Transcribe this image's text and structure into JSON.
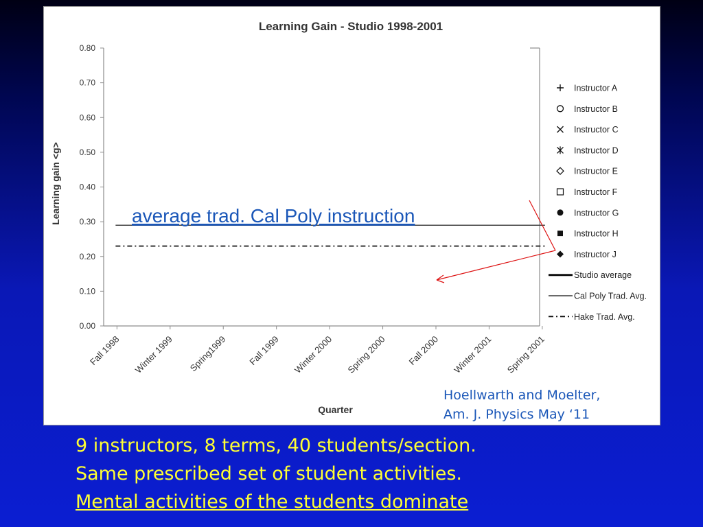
{
  "chart_data": {
    "type": "scatter",
    "title": "Learning Gain - Studio 1998-2001",
    "xlabel": "Quarter",
    "ylabel": "Learning gain <g>",
    "categories": [
      "Fall 1998",
      "Winter 1999",
      "Spring1999",
      "Fall 1999",
      "Winter 2000",
      "Spring 2000",
      "Fall 2000",
      "Winter 2001",
      "Spring 2001"
    ],
    "ylim": [
      0,
      0.8
    ],
    "yticks": [
      "0.00",
      "0.10",
      "0.20",
      "0.30",
      "0.40",
      "0.50",
      "0.60",
      "0.70",
      "0.80"
    ],
    "grid": false,
    "legend_position": "right",
    "series": [
      {
        "name": "Instructor A",
        "marker": "plus",
        "values": []
      },
      {
        "name": "Instructor B",
        "marker": "circle-open",
        "values": []
      },
      {
        "name": "Instructor C",
        "marker": "x",
        "values": []
      },
      {
        "name": "Instructor D",
        "marker": "asterisk",
        "values": []
      },
      {
        "name": "Instructor E",
        "marker": "diamond-open",
        "values": []
      },
      {
        "name": "Instructor F",
        "marker": "square-open",
        "values": []
      },
      {
        "name": "Instructor G",
        "marker": "circle-filled",
        "values": []
      },
      {
        "name": "Instructor H",
        "marker": "square-filled",
        "values": []
      },
      {
        "name": "Instructor J",
        "marker": "diamond-filled",
        "values": []
      },
      {
        "name": "Studio average",
        "line": "thick",
        "values": []
      },
      {
        "name": "Cal Poly Trad. Avg.",
        "line": "thin",
        "values": [
          0.29,
          0.29,
          0.29,
          0.29,
          0.29,
          0.29,
          0.29,
          0.29,
          0.29
        ]
      },
      {
        "name": "Hake Trad. Avg.",
        "line": "dash-dot",
        "values": [
          0.23,
          0.23,
          0.23,
          0.23,
          0.23,
          0.23,
          0.23,
          0.23,
          0.23
        ]
      }
    ],
    "annotation": "average trad. Cal Poly instruction"
  },
  "colors": {
    "annotation_text": "#1b57b8",
    "arrow": "#dd1111",
    "citation": "#1b57b8",
    "bottom_text": "#ffff33"
  },
  "citation": {
    "line1": "Hoellwarth and Moelter,",
    "line2": "Am. J. Physics May ‘11"
  },
  "bottom_text": {
    "line1": "9 instructors, 8 terms, 40 students/section.",
    "line2": "Same prescribed set of student activities.",
    "line3": "Mental activities of the students dominate"
  }
}
